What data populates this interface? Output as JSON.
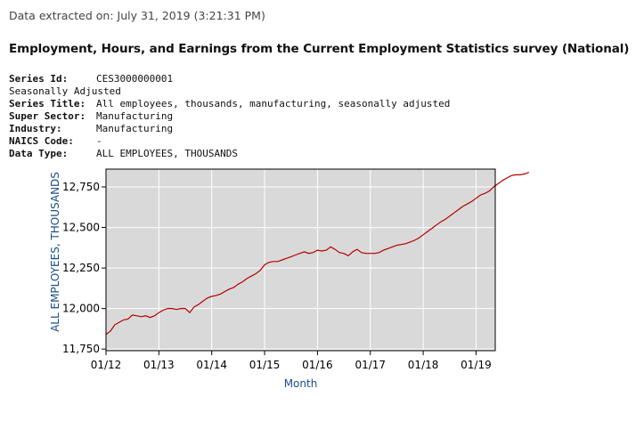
{
  "header": {
    "extracted": "Data extracted on: July 31, 2019 (3:21:31 PM)",
    "title": "Employment, Hours, and Earnings from the Current Employment Statistics survey (National)"
  },
  "series_info": {
    "series_id_label": "Series Id:",
    "series_id": "CES3000000001",
    "seasonal": "Seasonally Adjusted",
    "series_title_label": "Series Title:",
    "series_title": "All employees, thousands, manufacturing, seasonally adjusted",
    "super_sector_label": "Super Sector:",
    "super_sector": "Manufacturing",
    "industry_label": "Industry:",
    "industry": "Manufacturing",
    "naics_label": "NAICS Code:",
    "naics": "-",
    "data_type_label": "Data Type:",
    "data_type": "ALL EMPLOYEES, THOUSANDS"
  },
  "colors": {
    "plot_bg": "#d9d9d9",
    "grid": "#ffffff",
    "line": "#b30000",
    "axis_label": "#1a4e8c"
  },
  "chart_data": {
    "type": "line",
    "xlabel": "Month",
    "ylabel": "ALL EMPLOYEES,  THOUSANDS",
    "grid": true,
    "ylim": [
      11740,
      12860
    ],
    "x_ticks": [
      "01/12",
      "01/13",
      "01/14",
      "01/15",
      "01/16",
      "01/17",
      "01/18",
      "01/19"
    ],
    "y_ticks": [
      {
        "value": 11750,
        "label": "11,750"
      },
      {
        "value": 12000,
        "label": "12,000"
      },
      {
        "value": 12250,
        "label": "12,250"
      },
      {
        "value": 12500,
        "label": "12,500"
      },
      {
        "value": 12750,
        "label": "12,750"
      }
    ],
    "x_start": "2012-01",
    "series": [
      {
        "values": [
          11840,
          11860,
          11900,
          11915,
          11930,
          11935,
          11960,
          11955,
          11950,
          11955,
          11945,
          11955,
          11975,
          11990,
          12000,
          12000,
          11995,
          12000,
          12000,
          11975,
          12010,
          12025,
          12045,
          12065,
          12075,
          12080,
          12090,
          12105,
          12120,
          12130,
          12150,
          12165,
          12185,
          12200,
          12215,
          12235,
          12270,
          12285,
          12290,
          12290,
          12300,
          12310,
          12320,
          12330,
          12340,
          12350,
          12340,
          12345,
          12360,
          12355,
          12360,
          12380,
          12365,
          12345,
          12340,
          12325,
          12350,
          12365,
          12345,
          12340,
          12340,
          12340,
          12345,
          12360,
          12370,
          12380,
          12390,
          12395,
          12400,
          12410,
          12420,
          12435,
          12455,
          12475,
          12495,
          12515,
          12535,
          12550,
          12570,
          12590,
          12610,
          12630,
          12645,
          12660,
          12680,
          12700,
          12710,
          12725,
          12750,
          12770,
          12790,
          12805,
          12820,
          12825,
          12825,
          12830,
          12840
        ]
      }
    ]
  }
}
